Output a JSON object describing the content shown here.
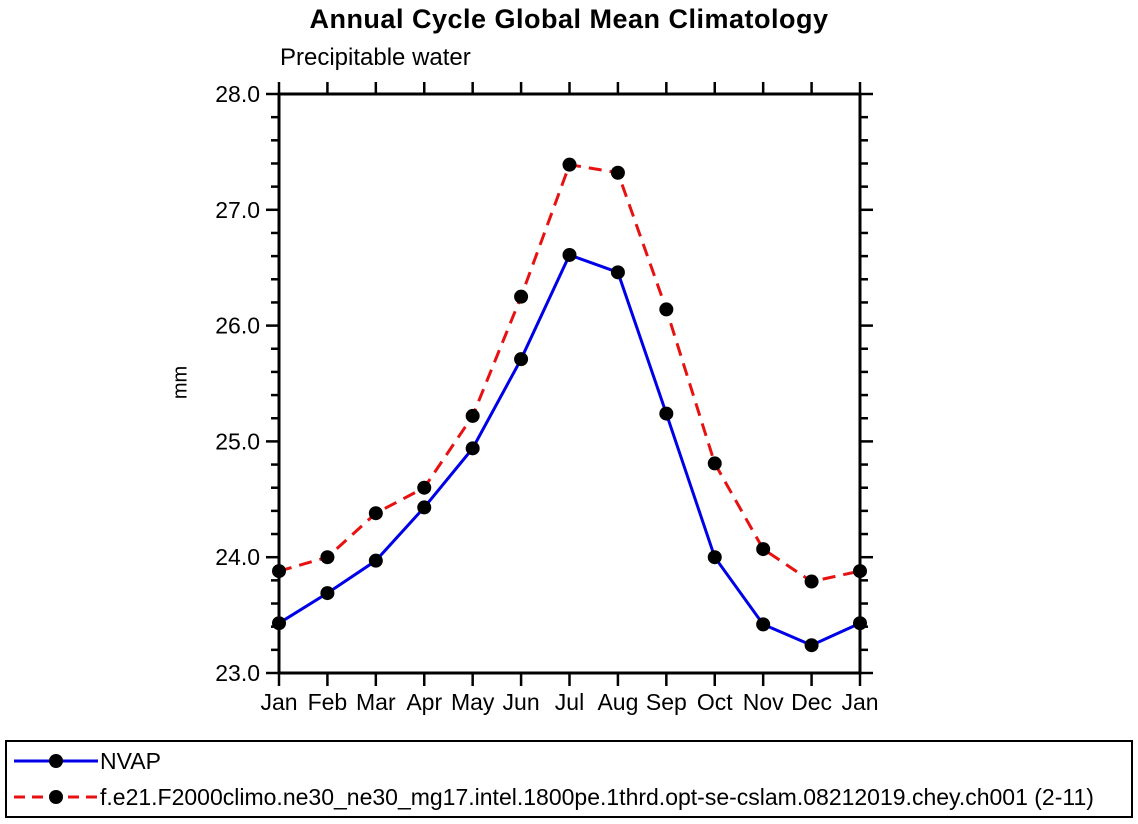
{
  "chart_data": {
    "type": "line",
    "title": "Annual Cycle Global Mean Climatology",
    "subtitle": "Precipitable water",
    "ylabel": "mm",
    "xlabel": "",
    "categories": [
      "Jan",
      "Feb",
      "Mar",
      "Apr",
      "May",
      "Jun",
      "Jul",
      "Aug",
      "Sep",
      "Oct",
      "Nov",
      "Dec",
      "Jan"
    ],
    "ylim": [
      23.0,
      28.0
    ],
    "ytick_labels": [
      "23.0",
      "24.0",
      "25.0",
      "26.0",
      "27.0",
      "28.0"
    ],
    "ytick_minor_step": 0.2,
    "grid": false,
    "legend_position": "bottom-outside",
    "axis_color": "#000000",
    "series": [
      {
        "key": "nvap",
        "name": "NVAP",
        "color": "#0000e8",
        "line_style": "solid",
        "marker": "filled-circle",
        "marker_color": "#000000",
        "values": [
          23.43,
          23.69,
          23.97,
          24.43,
          24.94,
          25.71,
          26.61,
          26.46,
          25.24,
          24.0,
          23.42,
          23.24,
          23.43
        ]
      },
      {
        "key": "model",
        "name": "f.e21.F2000climo.ne30_ne30_mg17.intel.1800pe.1thrd.opt-se-cslam.08212019.chey.ch001 (2-11)",
        "color": "#e81111",
        "line_style": "dashed",
        "marker": "filled-circle",
        "marker_color": "#000000",
        "values": [
          23.88,
          24.0,
          24.38,
          24.6,
          25.22,
          26.25,
          27.39,
          27.32,
          26.14,
          24.81,
          24.07,
          23.79,
          23.88
        ]
      }
    ]
  }
}
